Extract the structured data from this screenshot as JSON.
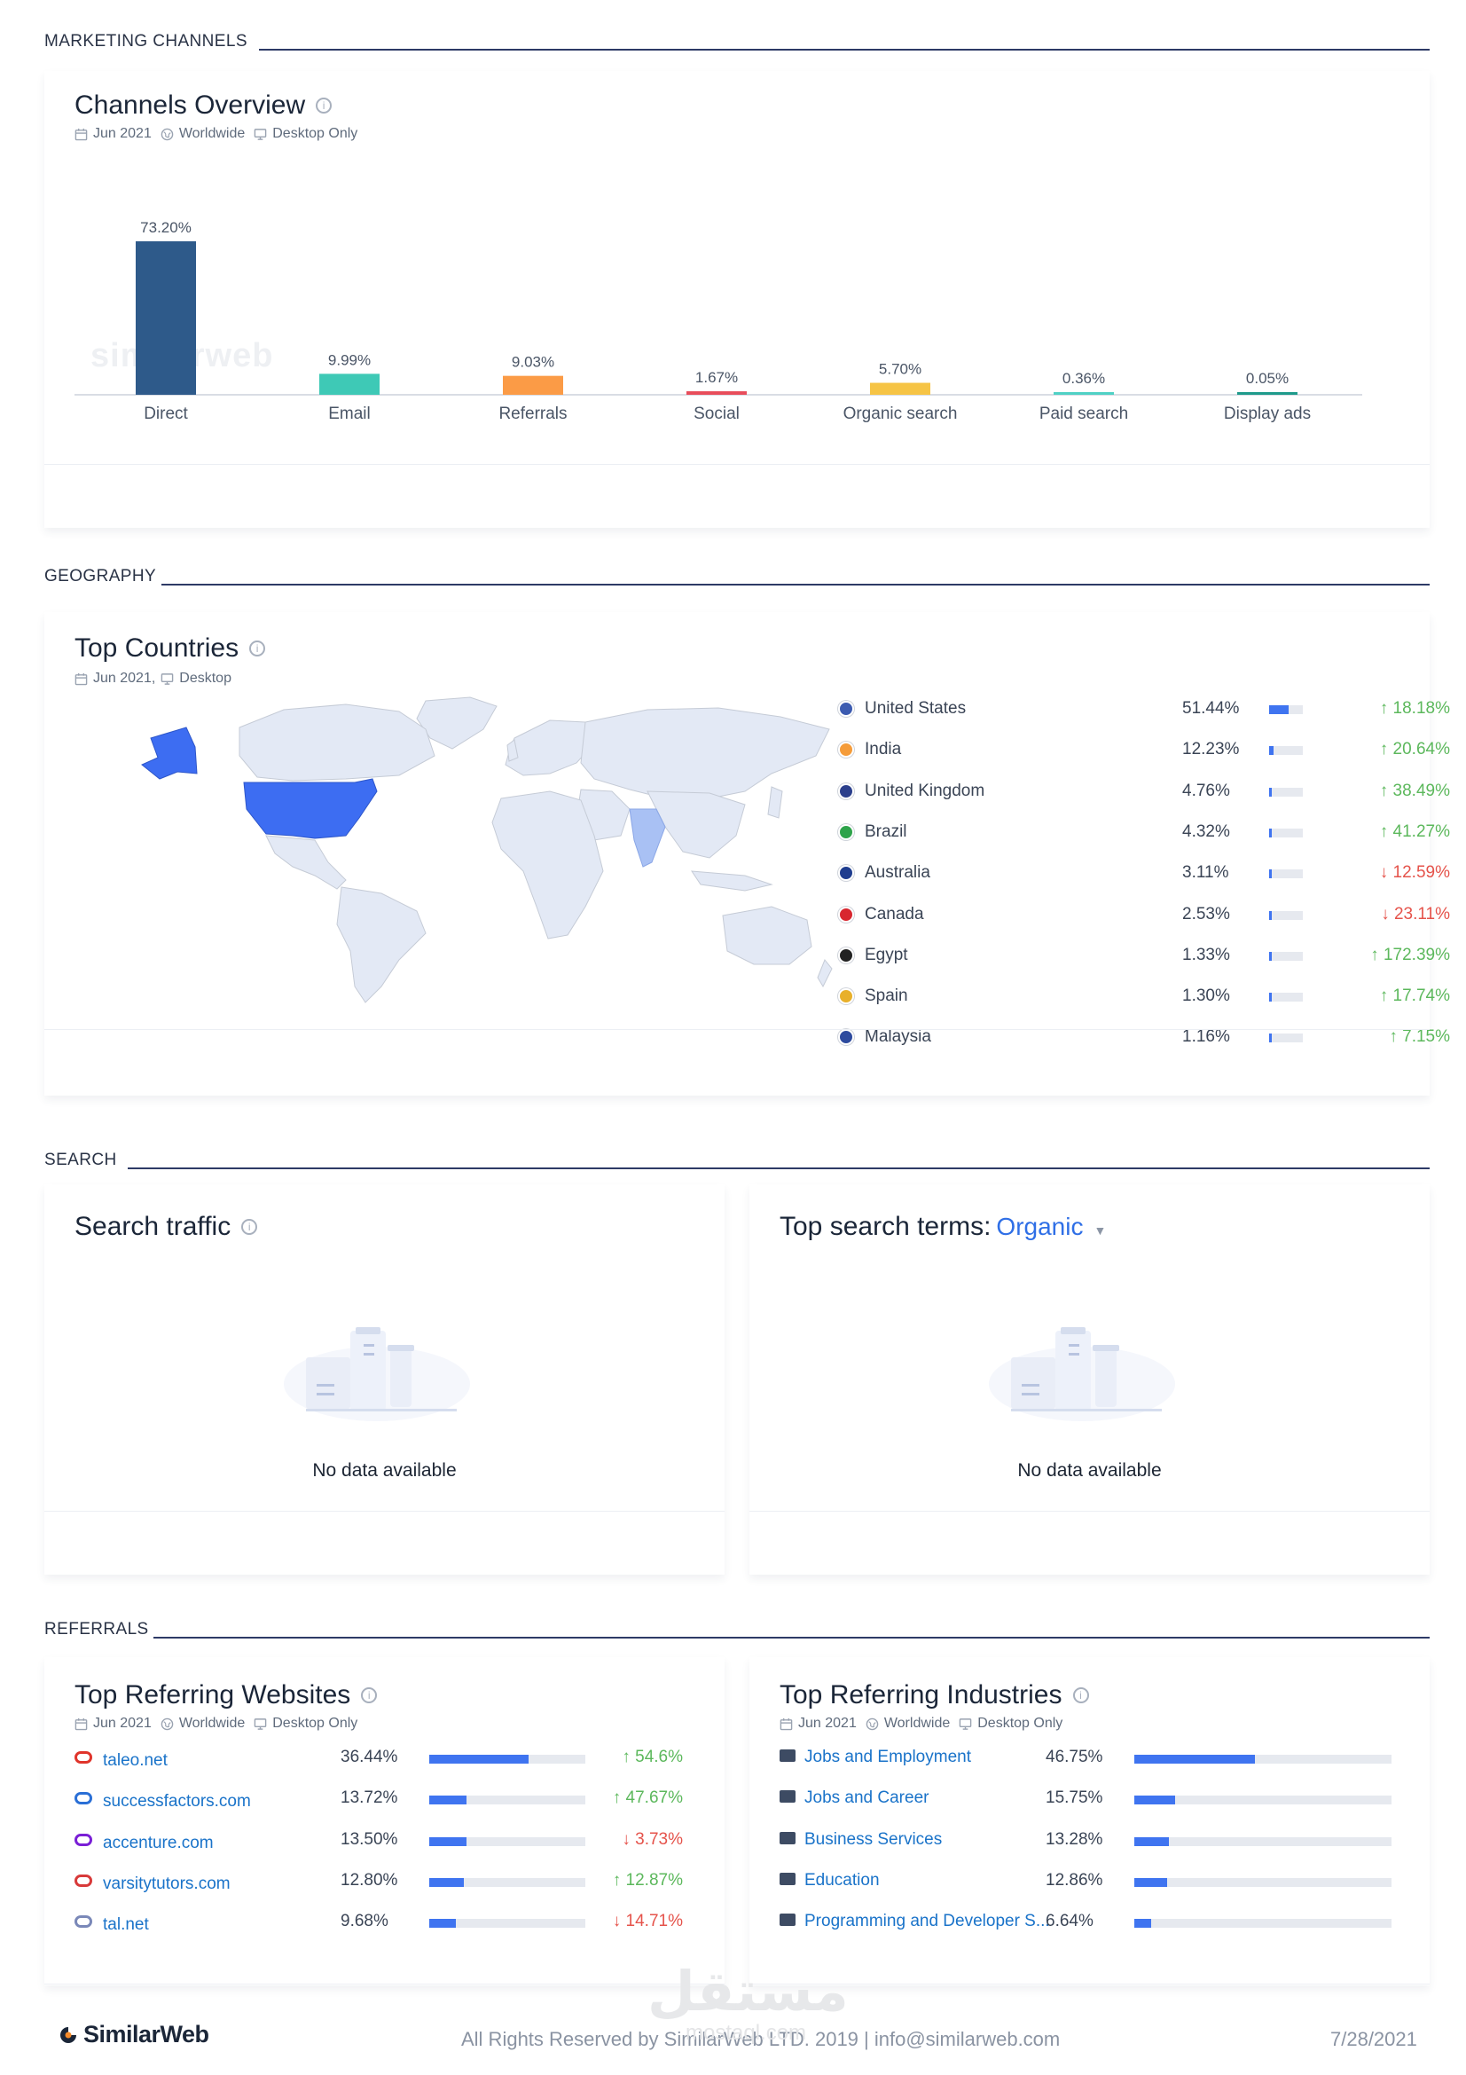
{
  "sections": {
    "marketing": "MARKETING CHANNELS",
    "geography": "GEOGRAPHY",
    "search": "SEARCH",
    "referrals": "REFERRALS"
  },
  "channels": {
    "title": "Channels Overview",
    "meta": {
      "date": "Jun 2021",
      "region": "Worldwide",
      "device": "Desktop Only"
    },
    "watermark": "similarweb",
    "colors": [
      "#2e5a8a",
      "#3ec9b6",
      "#fb9b46",
      "#e84c5a",
      "#f6c445",
      "#4fd1c5",
      "#1e9a8b"
    ]
  },
  "chart_data": {
    "type": "bar",
    "categories": [
      "Direct",
      "Email",
      "Referrals",
      "Social",
      "Organic search",
      "Paid search",
      "Display ads"
    ],
    "values": [
      73.2,
      9.99,
      9.03,
      1.67,
      5.7,
      0.36,
      0.05
    ],
    "labels": [
      "73.20%",
      "9.99%",
      "9.03%",
      "1.67%",
      "5.70%",
      "0.36%",
      "0.05%"
    ],
    "title": "",
    "xlabel": "",
    "ylabel": ""
  },
  "countries": {
    "title": "Top Countries",
    "meta": {
      "date": "Jun 2021,",
      "device": "Desktop"
    },
    "rows": [
      {
        "name": "United States",
        "share": "51.44%",
        "share_value": 0.5144,
        "change": "18.18%",
        "dir": "up",
        "flag": "#3c5bb0"
      },
      {
        "name": "India",
        "share": "12.23%",
        "share_value": 0.1223,
        "change": "20.64%",
        "dir": "up",
        "flag": "#f59c3a"
      },
      {
        "name": "United Kingdom",
        "share": "4.76%",
        "share_value": 0.0476,
        "change": "38.49%",
        "dir": "up",
        "flag": "#2b3f8c"
      },
      {
        "name": "Brazil",
        "share": "4.32%",
        "share_value": 0.0432,
        "change": "41.27%",
        "dir": "up",
        "flag": "#2ea34a"
      },
      {
        "name": "Australia",
        "share": "3.11%",
        "share_value": 0.0311,
        "change": "12.59%",
        "dir": "down",
        "flag": "#1f3d8f"
      },
      {
        "name": "Canada",
        "share": "2.53%",
        "share_value": 0.0253,
        "change": "23.11%",
        "dir": "down",
        "flag": "#d8262f"
      },
      {
        "name": "Egypt",
        "share": "1.33%",
        "share_value": 0.0133,
        "change": "172.39%",
        "dir": "up",
        "flag": "#222222"
      },
      {
        "name": "Spain",
        "share": "1.30%",
        "share_value": 0.013,
        "change": "17.74%",
        "dir": "up",
        "flag": "#e8b02a"
      },
      {
        "name": "Malaysia",
        "share": "1.16%",
        "share_value": 0.0116,
        "change": "7.15%",
        "dir": "up",
        "flag": "#2d4a9e"
      }
    ]
  },
  "search_traffic": {
    "title": "Search traffic",
    "empty": "No data available"
  },
  "search_terms": {
    "title": "Top search terms:",
    "selector": "Organic",
    "empty": "No data available"
  },
  "referring_sites": {
    "title": "Top Referring Websites",
    "meta": {
      "date": "Jun 2021",
      "region": "Worldwide",
      "device": "Desktop Only"
    },
    "rows": [
      {
        "site": "taleo.net",
        "share": "36.44%",
        "share_value": 0.3644,
        "change": "54.6%",
        "dir": "up",
        "icon": "taleo-icon",
        "color": "#e0342b"
      },
      {
        "site": "successfactors.com",
        "share": "13.72%",
        "share_value": 0.1372,
        "change": "47.67%",
        "dir": "up",
        "icon": "successfactors-icon",
        "color": "#2a6fd6"
      },
      {
        "site": "accenture.com",
        "share": "13.50%",
        "share_value": 0.135,
        "change": "3.73%",
        "dir": "down",
        "icon": "accenture-icon",
        "color": "#7a1fd6"
      },
      {
        "site": "varsitytutors.com",
        "share": "12.80%",
        "share_value": 0.128,
        "change": "12.87%",
        "dir": "up",
        "icon": "varsitytutors-icon",
        "color": "#d83a3a"
      },
      {
        "site": "tal.net",
        "share": "9.68%",
        "share_value": 0.0968,
        "change": "14.71%",
        "dir": "down",
        "icon": "talnet-icon",
        "color": "#7a88b8"
      }
    ]
  },
  "referring_industries": {
    "title": "Top Referring Industries",
    "meta": {
      "date": "Jun 2021",
      "region": "Worldwide",
      "device": "Desktop Only"
    },
    "rows": [
      {
        "name": "Jobs and Employment",
        "share": "46.75%",
        "share_value": 0.4675,
        "icon": "briefcase-icon"
      },
      {
        "name": "Jobs and Career",
        "share": "15.75%",
        "share_value": 0.1575,
        "icon": "briefcase-icon"
      },
      {
        "name": "Business Services",
        "share": "13.28%",
        "share_value": 0.1328,
        "icon": "building-icon"
      },
      {
        "name": "Education",
        "share": "12.86%",
        "share_value": 0.1286,
        "icon": "flask-icon"
      },
      {
        "name": "Programming and Developer S...",
        "share": "6.64%",
        "share_value": 0.0664,
        "icon": "laptop-icon"
      }
    ]
  },
  "footer": {
    "brand": "SimilarWeb",
    "rights": "All Rights Reserved by SimilarWeb LTD. 2019 | info@similarweb.com",
    "date": "7/28/2021",
    "watermark": "مستقل",
    "watermark_sub": "mostaql.com"
  }
}
